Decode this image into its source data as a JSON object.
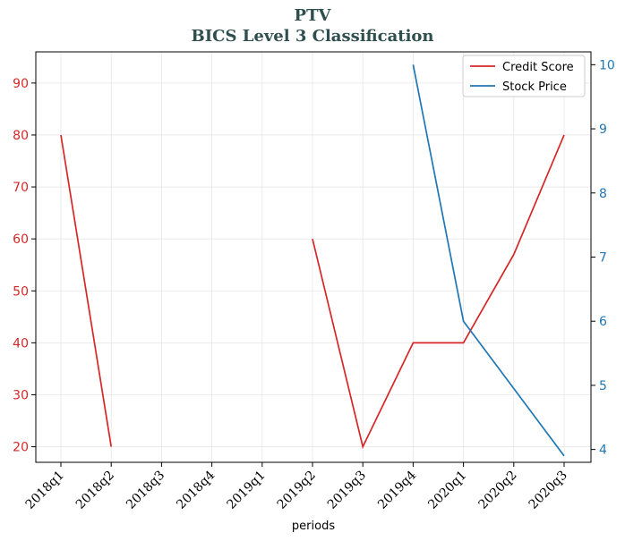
{
  "chart_data": {
    "type": "line",
    "title": "PTV",
    "subtitle": "BICS Level 3 Classification",
    "xlabel": "periods",
    "categories": [
      "2018q1",
      "2018q2",
      "2018q3",
      "2018q4",
      "2019q1",
      "2019q2",
      "2019q3",
      "2019q4",
      "2020q1",
      "2020q2",
      "2020q3"
    ],
    "y_left": {
      "ylim": [
        17,
        96
      ],
      "ticks": [
        "20",
        "30",
        "40",
        "50",
        "60",
        "70",
        "80",
        "90"
      ],
      "color": "#d62728"
    },
    "y_right": {
      "ylim": [
        3.8,
        10.2
      ],
      "ticks": [
        "4",
        "5",
        "6",
        "7",
        "8",
        "9",
        "10"
      ],
      "color": "#1f77b4"
    },
    "grid": true,
    "legend": "top-right",
    "series": [
      {
        "name": "Credit Score",
        "axis": "left",
        "color": "#d62728",
        "values": [
          80,
          20,
          null,
          null,
          null,
          60,
          20,
          40,
          40,
          57,
          80
        ]
      },
      {
        "name": "Stock Price",
        "axis": "right",
        "color": "#1f77b4",
        "values": [
          null,
          null,
          null,
          null,
          null,
          null,
          null,
          10.0,
          6.0,
          4.95,
          3.9
        ]
      }
    ]
  }
}
